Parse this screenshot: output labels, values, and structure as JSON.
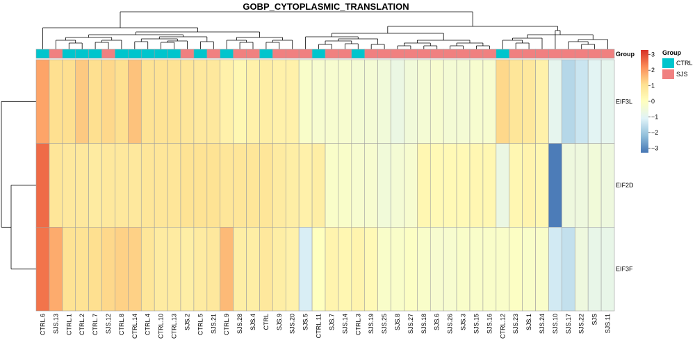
{
  "chart_data": {
    "type": "heatmap",
    "title": "GOBP_CYTOPLASMIC_TRANSLATION",
    "columns": [
      "CTRL.6",
      "SJS.13",
      "CTRL.1",
      "CTRL.2",
      "CTRL.7",
      "SJS.12",
      "CTRL.8",
      "CTRL.14",
      "CTRL.4",
      "CTRL.10",
      "CTRL.13",
      "SJS.2",
      "CTRL.5",
      "SJS.21",
      "CTRL.9",
      "SJS.28",
      "SJS.4",
      "CTRL",
      "SJS.9",
      "SJS.20",
      "SJS.5",
      "CTRL.11",
      "SJS.7",
      "SJS.14",
      "CTRL.3",
      "SJS.19",
      "SJS.25",
      "SJS.8",
      "SJS.27",
      "SJS.18",
      "SJS.6",
      "SJS.26",
      "SJS.3",
      "SJS.15",
      "SJS.16",
      "CTRL.12",
      "SJS.23",
      "SJS.1",
      "SJS.24",
      "SJS.10",
      "SJS.17",
      "SJS.22",
      "SJS",
      "SJS.11"
    ],
    "rows": [
      "EIF3L",
      "EIF2D",
      "EIF3F"
    ],
    "values": [
      [
        1.9,
        1.1,
        1.1,
        1.4,
        1.1,
        1.2,
        1.1,
        1.5,
        1.0,
        1.0,
        1.0,
        0.9,
        0.8,
        0.8,
        0.5,
        0.3,
        0.5,
        0.6,
        0.5,
        0.5,
        -0.2,
        -0.3,
        -0.3,
        -0.3,
        -0.4,
        -0.4,
        -0.5,
        -0.7,
        -0.5,
        -0.4,
        -0.3,
        -0.4,
        -0.4,
        -0.3,
        -0.3,
        1.2,
        0.9,
        0.8,
        0.5,
        -0.9,
        -1.7,
        -1.4,
        -1.0,
        -0.9
      ],
      [
        2.6,
        0.9,
        0.8,
        0.8,
        0.7,
        0.8,
        0.8,
        0.8,
        0.9,
        0.9,
        0.9,
        1.0,
        1.0,
        1.0,
        0.9,
        0.9,
        0.9,
        0.9,
        0.7,
        0.6,
        0.5,
        0.6,
        -0.2,
        -0.2,
        -0.3,
        -0.3,
        -0.5,
        -0.4,
        -0.3,
        0.3,
        0.2,
        0.2,
        0.2,
        0.3,
        0.3,
        -0.7,
        0.3,
        0.4,
        0.3,
        -3.2,
        -0.6,
        -0.6,
        -0.5,
        -0.6
      ],
      [
        2.5,
        1.8,
        1.0,
        1.0,
        1.1,
        1.2,
        1.3,
        1.3,
        0.9,
        0.7,
        0.7,
        0.6,
        0.7,
        0.8,
        1.6,
        0.6,
        0.6,
        0.8,
        0.6,
        0.5,
        -1.2,
        0.0,
        0.4,
        0.3,
        0.4,
        0.2,
        -0.2,
        -0.2,
        -0.1,
        -0.2,
        -0.3,
        -0.3,
        -0.2,
        -0.2,
        -0.2,
        -0.2,
        -0.1,
        -0.2,
        -0.2,
        -1.3,
        -1.5,
        -0.6,
        -0.8,
        -0.8
      ]
    ],
    "group": [
      "CTRL",
      "SJS",
      "CTRL",
      "CTRL",
      "CTRL",
      "SJS",
      "CTRL",
      "CTRL",
      "CTRL",
      "CTRL",
      "CTRL",
      "SJS",
      "CTRL",
      "SJS",
      "CTRL",
      "SJS",
      "SJS",
      "CTRL",
      "SJS",
      "SJS",
      "SJS",
      "CTRL",
      "SJS",
      "SJS",
      "CTRL",
      "SJS",
      "SJS",
      "SJS",
      "SJS",
      "SJS",
      "SJS",
      "SJS",
      "SJS",
      "SJS",
      "SJS",
      "CTRL",
      "SJS",
      "SJS",
      "SJS",
      "SJS",
      "SJS",
      "SJS",
      "SJS",
      "SJS"
    ],
    "annotation_label": "Group",
    "legend": {
      "title": "Group",
      "entries": [
        {
          "name": "CTRL",
          "color": "#00c5cd"
        },
        {
          "name": "SJS",
          "color": "#f08080"
        }
      ]
    },
    "colorbar": {
      "ticks": [
        3,
        2,
        1,
        0,
        -1,
        -2,
        -3
      ],
      "range": [
        -3.3,
        3.3
      ],
      "colors": [
        "#4575b4",
        "#91bfdb",
        "#e0f3f8",
        "#ffffbf",
        "#fee090",
        "#fc8d59",
        "#d73027"
      ]
    }
  }
}
